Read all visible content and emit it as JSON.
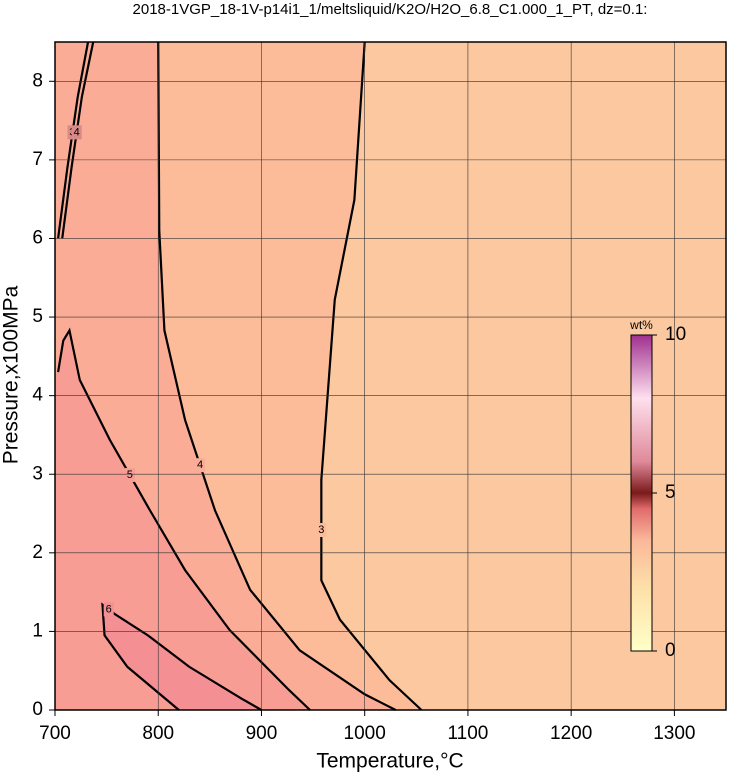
{
  "chart_data": {
    "type": "contour",
    "title": "2018-1VGP_18-1V-p14i1_1/meltsliquid/K2O/H2O_6.8_C1.000_1_PT, dz=0.1:",
    "x_label": "Temperature,°C",
    "y_label": "Pressure,x100MPa",
    "xlim": [
      700,
      1350
    ],
    "ylim": [
      0,
      8.5
    ],
    "xticks": [
      700,
      800,
      900,
      1000,
      1100,
      1200,
      1300
    ],
    "yticks": [
      0,
      1,
      2,
      3,
      4,
      5,
      6,
      7,
      8
    ],
    "grid": true,
    "background": "#fcc8a0",
    "contours": [
      {
        "level": 3,
        "color": "#fcbc9a",
        "x": [
          1000,
          990,
          971,
          958,
          958,
          976,
          1024,
          1055
        ],
        "y": [
          8.5,
          6.49,
          5.22,
          2.93,
          1.65,
          1.15,
          0.38,
          0
        ]
      },
      {
        "level": 4,
        "color": "#fbac97",
        "x": [
          800,
          801,
          806,
          826,
          855,
          889,
          937,
          1000,
          1030
        ],
        "y": [
          8.5,
          6.1,
          4.83,
          3.69,
          2.54,
          1.53,
          0.76,
          0.2,
          0
        ]
      },
      {
        "level": 5,
        "color": "#f89d94",
        "x": [
          703,
          708,
          714,
          724,
          753,
          792,
          826,
          869,
          927,
          947
        ],
        "y": [
          4.3,
          4.7,
          4.83,
          4.2,
          3.44,
          2.54,
          1.78,
          1.02,
          0.25,
          0
        ]
      },
      {
        "level": 6,
        "color": "#f48f93",
        "x": [
          820,
          770,
          748,
          746,
          758,
          790,
          830,
          880,
          900
        ],
        "y": [
          0,
          0.55,
          0.95,
          1.34,
          1.22,
          0.95,
          0.55,
          0.15,
          0
        ]
      },
      {
        "level": 3,
        "color": "#d98a86",
        "x": [
          703,
          712,
          722,
          732
        ],
        "y": [
          6.0,
          6.9,
          7.8,
          8.5
        ]
      },
      {
        "level": 4,
        "color": "#d98a86",
        "x": [
          707,
          716,
          726,
          737
        ],
        "y": [
          6.0,
          6.9,
          7.8,
          8.5
        ]
      }
    ],
    "colorbar": {
      "label": "wt%",
      "lim": [
        0,
        10
      ],
      "ticks": [
        0,
        5,
        10
      ]
    }
  }
}
